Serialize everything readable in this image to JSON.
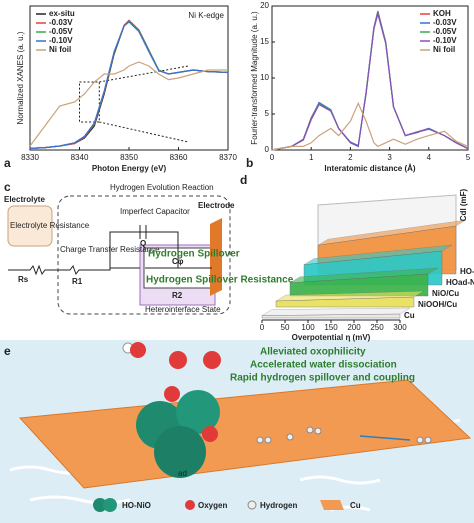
{
  "chart_data": [
    {
      "type": "line",
      "label": "a",
      "annotation": "Ni K-edge",
      "x_label": "Photon Energy (eV)",
      "y_label": "Normalized XANES (a. u.)",
      "x": [
        8330,
        8333,
        8336,
        8339,
        8341,
        8343,
        8345,
        8347,
        8349,
        8350,
        8352,
        8354,
        8356,
        8358,
        8360,
        8363,
        8366,
        8370
      ],
      "xlim": [
        8330,
        8370
      ],
      "xticks": [
        8330,
        8340,
        8350,
        8360,
        8370
      ],
      "ylim": [
        0,
        1.8
      ],
      "legend": "top-left",
      "series": [
        {
          "name": "ex-situ",
          "color": "#222222",
          "values": [
            0.02,
            0.03,
            0.05,
            0.08,
            0.15,
            0.3,
            0.7,
            1.2,
            1.55,
            1.62,
            1.5,
            1.25,
            1.0,
            0.95,
            0.97,
            1.0,
            0.98,
            0.97
          ]
        },
        {
          "name": "-0.03V",
          "color": "#e8403a",
          "values": [
            0.02,
            0.03,
            0.05,
            0.08,
            0.16,
            0.32,
            0.72,
            1.22,
            1.56,
            1.62,
            1.5,
            1.24,
            1.0,
            0.95,
            0.97,
            1.0,
            0.98,
            0.97
          ]
        },
        {
          "name": "-0.05V",
          "color": "#3aa84a",
          "values": [
            0.02,
            0.03,
            0.05,
            0.09,
            0.17,
            0.33,
            0.73,
            1.22,
            1.55,
            1.61,
            1.49,
            1.24,
            1.0,
            0.95,
            0.97,
            1.0,
            0.98,
            0.97
          ]
        },
        {
          "name": "-0.10V",
          "color": "#3a6fd8",
          "values": [
            0.02,
            0.03,
            0.05,
            0.09,
            0.17,
            0.34,
            0.74,
            1.23,
            1.55,
            1.6,
            1.48,
            1.23,
            0.99,
            0.95,
            0.97,
            1.0,
            0.98,
            0.97
          ]
        },
        {
          "name": "Ni foil",
          "color": "#c9a27a",
          "values": [
            0.05,
            0.3,
            0.55,
            0.6,
            0.7,
            0.85,
            0.95,
            0.95,
            1.0,
            1.05,
            1.1,
            1.05,
            0.95,
            0.88,
            0.9,
            0.95,
            1.0,
            1.0
          ]
        }
      ]
    },
    {
      "type": "line",
      "label": "b",
      "x_label": "Interatomic distance (Å)",
      "y_label": "Fourier-transformed Magnitude (a. u.)",
      "x": [
        0,
        0.5,
        0.8,
        1.0,
        1.2,
        1.5,
        1.7,
        2.0,
        2.2,
        2.4,
        2.6,
        2.7,
        2.9,
        3.1,
        3.4,
        3.7,
        4.0,
        4.4,
        4.7,
        5.0
      ],
      "xlim": [
        0,
        5
      ],
      "xticks": [
        0,
        1,
        2,
        3,
        4,
        5
      ],
      "ylim": [
        0,
        20
      ],
      "yticks": [
        0,
        5,
        10,
        15,
        20
      ],
      "legend": "top-right",
      "series": [
        {
          "name": "KOH",
          "color": "#e8403a",
          "values": [
            0,
            0.5,
            1.5,
            4.5,
            6.5,
            5.5,
            3,
            1,
            0.5,
            8,
            17,
            19.3,
            15,
            6,
            2,
            2.5,
            3,
            2,
            1,
            0.2
          ]
        },
        {
          "name": "-0.03V",
          "color": "#3a6fd8",
          "values": [
            0,
            0.5,
            1.5,
            4.4,
            6.6,
            5.6,
            3,
            1,
            0.5,
            8,
            17,
            19.2,
            15,
            6,
            2,
            2.4,
            3,
            2,
            1,
            0.2
          ]
        },
        {
          "name": "-0.05V",
          "color": "#3aa84a",
          "values": [
            0,
            0.5,
            1.4,
            4.3,
            6.4,
            5.5,
            3,
            1.1,
            0.6,
            8,
            17,
            19,
            15,
            6,
            2,
            2.5,
            2.9,
            2,
            1,
            0.2
          ]
        },
        {
          "name": "-0.10V",
          "color": "#8a4fc0",
          "values": [
            0,
            0.5,
            1.4,
            4.2,
            6.3,
            5.4,
            3,
            1.1,
            0.6,
            7.8,
            16.8,
            18.9,
            14.8,
            6,
            2,
            2.5,
            2.9,
            2,
            1,
            0.2
          ]
        },
        {
          "name": "Ni foil",
          "color": "#c9a27a",
          "values": [
            0,
            0.5,
            0.5,
            1,
            2,
            3,
            2,
            4,
            6.5,
            4,
            1,
            0.5,
            1,
            1.5,
            0.8,
            1.5,
            2,
            2.6,
            1.2,
            0.5
          ]
        }
      ]
    },
    {
      "type": "ribbon3d",
      "label": "d",
      "x_label": "Overpotential η (mV)",
      "y_label": "Cdl (mF)",
      "xlim": [
        0,
        300
      ],
      "xticks": [
        0,
        50,
        100,
        150,
        200,
        250,
        300
      ],
      "series": [
        {
          "name": "HO-NiO/Cu",
          "color": "#f2913d"
        },
        {
          "name": "HOad-NiO/Cu",
          "color": "#2bc8c8"
        },
        {
          "name": "NiO/Cu",
          "color": "#3bb34a"
        },
        {
          "name": "NiOOH/Cu",
          "color": "#e8e05a"
        },
        {
          "name": "Cu",
          "color": "#e8e8e8"
        }
      ]
    }
  ],
  "diagram": {
    "label": "c",
    "title": "Hydrogen Evolution Reaction",
    "electrolyte": "Electrolyte",
    "electrolyte_resistance": "Electrolyte Resistance",
    "rs": "Rs",
    "charge_transfer": "Charge Transfer Resistance",
    "r1": "R1",
    "capacitor": "Imperfect Capacitor",
    "q": "Q",
    "spillover": "Hydrogen Spillover",
    "cphi": "Cφ",
    "spillover_resistance": "Hydrogen Spillover Resistance",
    "r2": "R2",
    "heterointerface": "Heterointerface State",
    "electrode": "Electrode"
  },
  "illustration": {
    "label": "e",
    "lines": [
      "Alleviated oxophilicity",
      "Accelerated water dissociation",
      "Rapid hydrogen spillover and coupling"
    ],
    "ad": "ad",
    "legend": [
      "HO-NiO",
      "Oxygen",
      "Hydrogen",
      "Cu"
    ]
  }
}
